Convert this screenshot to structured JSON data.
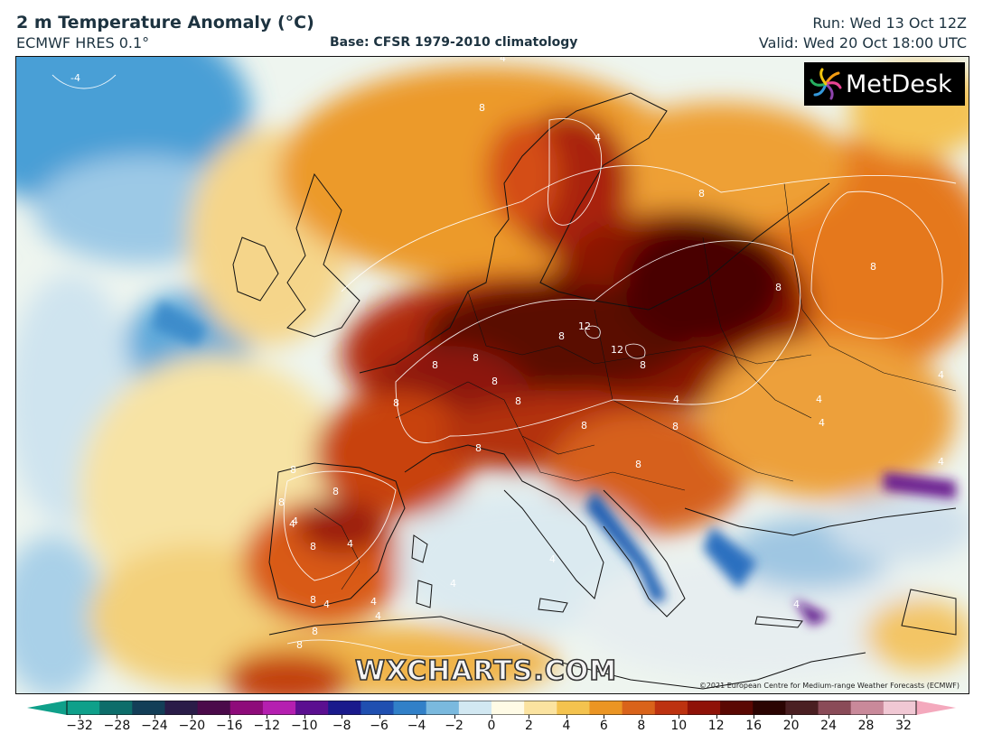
{
  "header": {
    "title": "2 m Temperature Anomaly (°C)",
    "model": "ECMWF HRES 0.1°",
    "base": "Base: CFSR 1979-2010 climatology",
    "run": "Run: Wed 13 Oct 12Z",
    "valid": "Valid: Wed 20 Oct 18:00 UTC"
  },
  "map": {
    "logo_text": "MetDesk",
    "logo_icon": "metdesk-pinwheel-icon",
    "watermark": "WXCHARTS.COM",
    "copyright": "©2021 European Centre for Medium-range Weather Forecasts (ECMWF)",
    "contour_labels": [
      "-4",
      "4",
      "8",
      "4",
      "8",
      "8",
      "8",
      "8",
      "4",
      "8",
      "12",
      "12",
      "8",
      "8",
      "8",
      "8",
      "8",
      "8",
      "4",
      "4",
      "8",
      "8",
      "8",
      "4",
      "8",
      "8",
      "8",
      "4",
      "4",
      "4",
      "8",
      "4",
      "8",
      "4",
      "4",
      "4",
      "8",
      "8",
      "4",
      "4",
      "4"
    ]
  },
  "colorbar": {
    "ticks": [
      "−32",
      "−28",
      "−24",
      "−20",
      "−16",
      "−12",
      "−10",
      "−8",
      "−6",
      "−4",
      "−2",
      "0",
      "2",
      "4",
      "6",
      "8",
      "10",
      "12",
      "16",
      "20",
      "24",
      "28",
      "32"
    ],
    "colors": [
      "#0fa08a",
      "#0d6d6a",
      "#133e57",
      "#2a1c48",
      "#4b0a4a",
      "#8e0b7a",
      "#b51fb0",
      "#5b0f90",
      "#1a1a8c",
      "#1f4fb0",
      "#3180c8",
      "#7ab9de",
      "#d2e8f2",
      "#fffbe6",
      "#fbe3a0",
      "#f4c34e",
      "#eb9523",
      "#d9631a",
      "#bd3210",
      "#8f1208",
      "#5a0803",
      "#2b0402",
      "#4a1f22",
      "#8a4b58",
      "#c9899a",
      "#f1c8d4"
    ],
    "neg_end": "#0fa08a",
    "pos_end": "#f4a9bd"
  }
}
